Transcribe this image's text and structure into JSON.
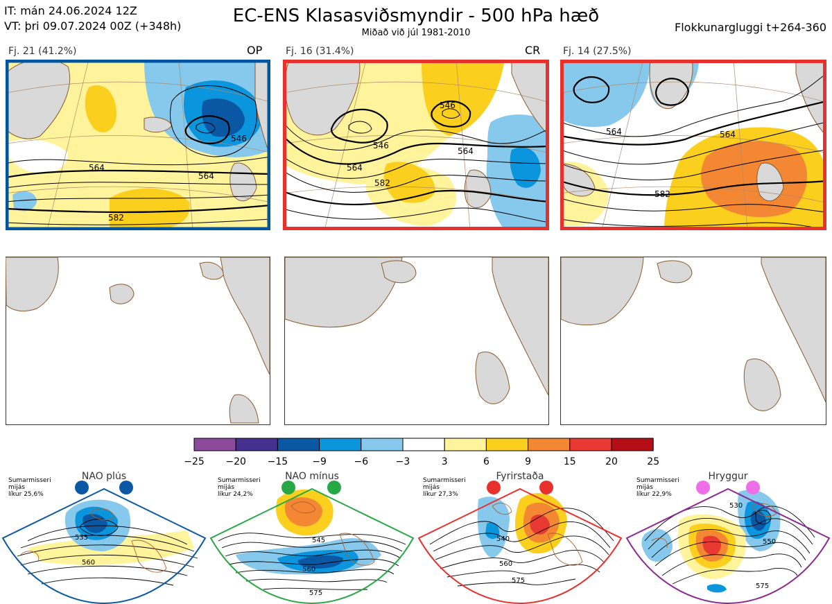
{
  "header": {
    "it_line": "IT: mán 24.06.2024 12Z",
    "vt_line": "VT: þri 09.07.2024 00Z  (+348h)",
    "title": "EC-ENS Klasasviðsmyndir - 500 hPa hæð",
    "subtitle": "Miðað við júl 1981-2010",
    "window": "Flokkunargluggi t+264-360"
  },
  "clusters": [
    {
      "label": "Fj. 21 (41.2%)",
      "tag": "OP",
      "border_color": "#0055a0",
      "contours": [
        "546",
        "564",
        "564",
        "582"
      ]
    },
    {
      "label": "Fj. 16 (31.4%)",
      "tag": "CR",
      "border_color": "#e8302c",
      "contours": [
        "546",
        "546",
        "564",
        "564",
        "582"
      ]
    },
    {
      "label": "Fj. 14 (27.5%)",
      "tag": "",
      "border_color": "#e8302c",
      "contours": [
        "564",
        "564",
        "582"
      ]
    }
  ],
  "colorbar": {
    "ticks": [
      "−25",
      "−20",
      "−15",
      "−9",
      "−6",
      "−3",
      "3",
      "6",
      "9",
      "15",
      "20",
      "25"
    ],
    "colors": [
      "#8b4a9c",
      "#46308f",
      "#0a57a4",
      "#0b95dd",
      "#86c9ec",
      "#ffffff",
      "#fff39b",
      "#fbcf1d",
      "#f48734",
      "#e83a32",
      "#b50e16"
    ]
  },
  "regimes": [
    {
      "name": "NAO plús",
      "season": "Sumarmisseri",
      "line2": "mijás",
      "prob": "líkur 25,6%",
      "color": "#0a57a4",
      "contours": [
        "535",
        "560"
      ]
    },
    {
      "name": "NAO mínus",
      "season": "Sumarmisseri",
      "line2": "mijás",
      "prob": "líkur 24,2%",
      "color": "#27a844",
      "contours": [
        "545",
        "560",
        "575"
      ]
    },
    {
      "name": "Fyrirstaða",
      "season": "Sumarmisseri",
      "line2": "mijás",
      "prob": "líkur 27,3%",
      "color": "#e8302c",
      "contours": [
        "540",
        "560",
        "575"
      ]
    },
    {
      "name": "Hryggur",
      "season": "Sumarmisseri",
      "line2": "mijás",
      "prob": "líkur 22,9%",
      "color": "#8b2a8f",
      "dot_color": "#ee6ee8",
      "contours": [
        "530",
        "550",
        "575"
      ]
    }
  ]
}
